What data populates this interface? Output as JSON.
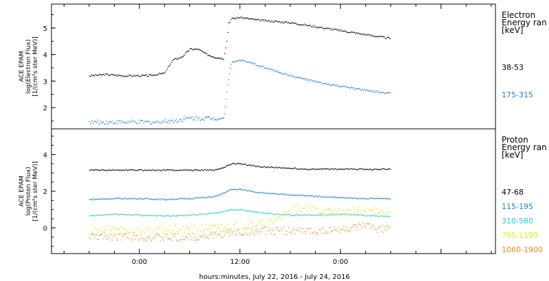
{
  "chart_data": [
    {
      "type": "scatter",
      "ylabel": [
        "ACE EPAM",
        "log(Electron Flux)",
        "[1/(cm²s ster MeV)]"
      ],
      "ylim": [
        1.2,
        5.9
      ],
      "yticks": [
        2,
        3,
        4,
        5
      ],
      "legend_title": [
        "Electron",
        "Energy ran",
        "[keV]"
      ],
      "series": [
        {
          "name": "38-53",
          "color": "#000000",
          "points": [
            [
              -6,
              3.2
            ],
            [
              -4,
              3.25
            ],
            [
              -2,
              3.2
            ],
            [
              0,
              3.2
            ],
            [
              1,
              3.2
            ],
            [
              2,
              3.25
            ],
            [
              3,
              3.3
            ],
            [
              3.5,
              3.6
            ],
            [
              4,
              3.8
            ],
            [
              5,
              3.9
            ],
            [
              6,
              4.2
            ],
            [
              7,
              4.2
            ],
            [
              8,
              4.0
            ],
            [
              9,
              3.9
            ],
            [
              10,
              3.85
            ],
            [
              10.4,
              4.5
            ],
            [
              10.6,
              5.2
            ],
            [
              11,
              5.35
            ],
            [
              12,
              5.4
            ],
            [
              13,
              5.35
            ],
            [
              14,
              5.3
            ],
            [
              16,
              5.25
            ],
            [
              18,
              5.2
            ],
            [
              20,
              5.1
            ],
            [
              22,
              5.0
            ],
            [
              24,
              4.9
            ],
            [
              26,
              4.8
            ],
            [
              28,
              4.7
            ],
            [
              30,
              4.6
            ]
          ]
        },
        {
          "name": "175-315",
          "color": "#1f7fd0",
          "points": [
            [
              -6,
              1.45
            ],
            [
              -4,
              1.45
            ],
            [
              -2,
              1.45
            ],
            [
              0,
              1.45
            ],
            [
              2,
              1.45
            ],
            [
              3,
              1.5
            ],
            [
              4,
              1.5
            ],
            [
              5,
              1.55
            ],
            [
              6,
              1.6
            ],
            [
              8,
              1.6
            ],
            [
              9,
              1.6
            ],
            [
              10,
              1.6
            ],
            [
              10.2,
              2.0
            ],
            [
              10.5,
              2.9
            ],
            [
              10.8,
              3.5
            ],
            [
              11,
              3.7
            ],
            [
              12,
              3.8
            ],
            [
              14,
              3.6
            ],
            [
              16,
              3.4
            ],
            [
              18,
              3.2
            ],
            [
              20,
              3.05
            ],
            [
              22,
              2.9
            ],
            [
              24,
              2.8
            ],
            [
              26,
              2.7
            ],
            [
              28,
              2.6
            ],
            [
              30,
              2.55
            ]
          ]
        }
      ]
    },
    {
      "type": "scatter",
      "ylabel": [
        "ACE EPAM",
        "log(Proton Flux)",
        "[1/(cm²s ster MeV)]"
      ],
      "ylim": [
        -1.4,
        5.4
      ],
      "yticks": [
        0,
        2,
        4
      ],
      "legend_title": [
        "Proton",
        "Energy ran",
        "[keV]"
      ],
      "series": [
        {
          "name": "47-68",
          "color": "#000000",
          "points": [
            [
              -6,
              3.15
            ],
            [
              -3,
              3.15
            ],
            [
              0,
              3.15
            ],
            [
              3,
              3.15
            ],
            [
              6,
              3.15
            ],
            [
              9,
              3.15
            ],
            [
              10,
              3.3
            ],
            [
              11,
              3.5
            ],
            [
              12,
              3.5
            ],
            [
              14,
              3.35
            ],
            [
              16,
              3.3
            ],
            [
              18,
              3.25
            ],
            [
              20,
              3.2
            ],
            [
              22,
              3.2
            ],
            [
              24,
              3.2
            ],
            [
              26,
              3.2
            ],
            [
              28,
              3.2
            ],
            [
              30,
              3.2
            ]
          ]
        },
        {
          "name": "115-195",
          "color": "#1f7fd0",
          "points": [
            [
              -6,
              1.55
            ],
            [
              -3,
              1.6
            ],
            [
              0,
              1.6
            ],
            [
              3,
              1.55
            ],
            [
              6,
              1.6
            ],
            [
              9,
              1.7
            ],
            [
              10,
              1.9
            ],
            [
              11,
              2.1
            ],
            [
              12,
              2.1
            ],
            [
              14,
              1.95
            ],
            [
              16,
              1.85
            ],
            [
              18,
              1.8
            ],
            [
              20,
              1.75
            ],
            [
              22,
              1.7
            ],
            [
              24,
              1.65
            ],
            [
              26,
              1.6
            ],
            [
              28,
              1.6
            ],
            [
              30,
              1.6
            ]
          ]
        },
        {
          "name": "310-580",
          "color": "#22d0c8",
          "points": [
            [
              -6,
              0.65
            ],
            [
              -3,
              0.75
            ],
            [
              0,
              0.7
            ],
            [
              3,
              0.65
            ],
            [
              6,
              0.7
            ],
            [
              9,
              0.8
            ],
            [
              10,
              0.9
            ],
            [
              11,
              1.0
            ],
            [
              12,
              1.0
            ],
            [
              14,
              0.85
            ],
            [
              16,
              0.75
            ],
            [
              18,
              0.7
            ],
            [
              20,
              0.7
            ],
            [
              22,
              0.7
            ],
            [
              24,
              0.75
            ],
            [
              26,
              0.7
            ],
            [
              28,
              0.65
            ],
            [
              30,
              0.6
            ]
          ]
        },
        {
          "name": "795-1193",
          "color": "#e8e81a",
          "points": [
            [
              -6,
              -0.2
            ],
            [
              -3,
              -0.05
            ],
            [
              0,
              -0.15
            ],
            [
              3,
              -0.1
            ],
            [
              6,
              -0.05
            ],
            [
              9,
              0.0
            ],
            [
              10,
              0.1
            ],
            [
              11,
              0.15
            ],
            [
              12,
              0.1
            ],
            [
              14,
              0.2
            ],
            [
              16,
              0.4
            ],
            [
              18,
              0.9
            ],
            [
              19,
              1.1
            ],
            [
              20,
              1.05
            ],
            [
              22,
              0.9
            ],
            [
              24,
              0.85
            ],
            [
              26,
              0.95
            ],
            [
              28,
              0.95
            ],
            [
              30,
              0.9
            ]
          ]
        },
        {
          "name": "1060-1900",
          "color": "#ef8a1c",
          "points": [
            [
              -6,
              -0.5
            ],
            [
              -3,
              -0.45
            ],
            [
              0,
              -0.5
            ],
            [
              3,
              -0.55
            ],
            [
              6,
              -0.5
            ],
            [
              9,
              -0.4
            ],
            [
              10,
              -0.3
            ],
            [
              11,
              -0.3
            ],
            [
              12,
              -0.25
            ],
            [
              14,
              -0.2
            ],
            [
              16,
              -0.15
            ],
            [
              18,
              -0.15
            ],
            [
              20,
              -0.2
            ],
            [
              22,
              -0.15
            ],
            [
              24,
              -0.1
            ],
            [
              26,
              0.0
            ],
            [
              27,
              0.1
            ],
            [
              28,
              0.0
            ],
            [
              30,
              -0.1
            ]
          ]
        }
      ]
    }
  ],
  "xaxis": {
    "label": "hours:minutes, July 22, 2016 - July 24, 2016",
    "xlim": [
      -10.5,
      42.5
    ],
    "ticks": [
      {
        "hours": 0,
        "label": "0:00"
      },
      {
        "hours": 12,
        "label": "12:00"
      },
      {
        "hours": 24,
        "label": "0:00"
      }
    ]
  }
}
